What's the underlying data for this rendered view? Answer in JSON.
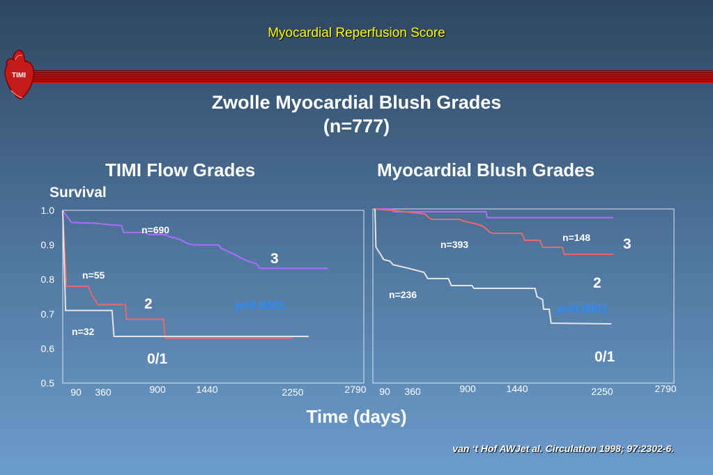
{
  "slide": {
    "header": "Myocardial Reperfusion Score",
    "title_line1": "Zwolle Myocardial Blush Grades",
    "title_line2": "(n=777)",
    "y_axis_label": "Survival",
    "x_axis_label": "Time (days)",
    "citation": "van ‘t Hof AWJet al. Circulation 1998; 97:2302-6.",
    "logo_text": "TIMI",
    "colors": {
      "background_top": "#2e4660",
      "background_bottom": "#6c9ccb",
      "header": "#ffff00",
      "rule": "#c01010",
      "pvalue": "#2a8cff"
    }
  },
  "chart_data": [
    {
      "type": "line",
      "title": "TIMI Flow Grades",
      "ylabel": "Survival",
      "xlabel": "Time (days)",
      "ylim": [
        0.5,
        1.0
      ],
      "xlim": [
        0,
        2790
      ],
      "y_ticks": [
        "1.0",
        "0.9",
        "0.8",
        "0.7",
        "0.6",
        "0.5"
      ],
      "x_ticks": [
        {
          "value": 90,
          "label": "90"
        },
        {
          "value": 360,
          "label": "360"
        },
        {
          "value": 900,
          "label": "900"
        },
        {
          "value": 1440,
          "label": "1440"
        },
        {
          "value": 2250,
          "label": "2250"
        },
        {
          "value": 2790,
          "label": "2790"
        }
      ],
      "pvalue": "p<0.0001",
      "series": [
        {
          "name": "3",
          "n_label": "n=690",
          "color": "#b06cff",
          "points": [
            [
              0,
              1.0
            ],
            [
              90,
              0.965
            ],
            [
              330,
              0.963
            ],
            [
              500,
              0.958
            ],
            [
              620,
              0.956
            ],
            [
              640,
              0.936
            ],
            [
              880,
              0.936
            ],
            [
              900,
              0.93
            ],
            [
              1090,
              0.93
            ],
            [
              1110,
              0.925
            ],
            [
              1180,
              0.92
            ],
            [
              1240,
              0.915
            ],
            [
              1320,
              0.903
            ],
            [
              1390,
              0.9
            ],
            [
              1640,
              0.9
            ],
            [
              1670,
              0.89
            ],
            [
              1790,
              0.875
            ],
            [
              1870,
              0.864
            ],
            [
              1930,
              0.855
            ],
            [
              2040,
              0.845
            ],
            [
              2080,
              0.832
            ],
            [
              2790,
              0.832
            ]
          ]
        },
        {
          "name": "2",
          "n_label": "n=55",
          "color": "#e86a6a",
          "points": [
            [
              0,
              1.0
            ],
            [
              40,
              0.78
            ],
            [
              270,
              0.78
            ],
            [
              310,
              0.753
            ],
            [
              370,
              0.727
            ],
            [
              660,
              0.727
            ],
            [
              670,
              0.685
            ],
            [
              1060,
              0.685
            ],
            [
              1080,
              0.63
            ],
            [
              2420,
              0.63
            ]
          ]
        },
        {
          "name": "0/1",
          "n_label": "n=32",
          "color": "#e4e4e4",
          "points": [
            [
              0,
              1.0
            ],
            [
              30,
              0.71
            ],
            [
              520,
              0.71
            ],
            [
              540,
              0.635
            ],
            [
              2590,
              0.635
            ]
          ]
        }
      ]
    },
    {
      "type": "line",
      "title": "Myocardial Blush Grades",
      "ylim": [
        0.5,
        1.0
      ],
      "xlim": [
        0,
        2790
      ],
      "x_ticks": [
        {
          "value": 90,
          "label": "90"
        },
        {
          "value": 360,
          "label": "360"
        },
        {
          "value": 900,
          "label": "900"
        },
        {
          "value": 1440,
          "label": "1440"
        },
        {
          "value": 2250,
          "label": "2250"
        },
        {
          "value": 2790,
          "label": "2790"
        }
      ],
      "pvalue": "p<0.0001",
      "series": [
        {
          "name": "3",
          "n_label": "n=148",
          "color": "#b06cff",
          "points": [
            [
              0,
              1.0
            ],
            [
              180,
              1.0
            ],
            [
              200,
              0.992
            ],
            [
              1180,
              0.992
            ],
            [
              1190,
              0.975
            ],
            [
              2530,
              0.975
            ]
          ]
        },
        {
          "name": "2",
          "n_label": "n=393",
          "color": "#e86a6a",
          "points": [
            [
              0,
              1.0
            ],
            [
              220,
              0.995
            ],
            [
              380,
              0.99
            ],
            [
              530,
              0.986
            ],
            [
              560,
              0.978
            ],
            [
              600,
              0.97
            ],
            [
              900,
              0.97
            ],
            [
              940,
              0.965
            ],
            [
              1030,
              0.96
            ],
            [
              1100,
              0.955
            ],
            [
              1150,
              0.95
            ],
            [
              1220,
              0.933
            ],
            [
              1250,
              0.93
            ],
            [
              1560,
              0.93
            ],
            [
              1590,
              0.91
            ],
            [
              1750,
              0.91
            ],
            [
              1780,
              0.89
            ],
            [
              1990,
              0.89
            ],
            [
              2010,
              0.87
            ],
            [
              2530,
              0.87
            ]
          ]
        },
        {
          "name": "0/1",
          "n_label": "n=236",
          "color": "#e4e4e4",
          "points": [
            [
              0,
              1.0
            ],
            [
              10,
              0.89
            ],
            [
              70,
              0.865
            ],
            [
              90,
              0.855
            ],
            [
              160,
              0.85
            ],
            [
              190,
              0.84
            ],
            [
              350,
              0.83
            ],
            [
              520,
              0.818
            ],
            [
              560,
              0.8
            ],
            [
              780,
              0.8
            ],
            [
              810,
              0.78
            ],
            [
              1030,
              0.78
            ],
            [
              1050,
              0.772
            ],
            [
              1700,
              0.772
            ],
            [
              1720,
              0.748
            ],
            [
              1780,
              0.74
            ],
            [
              1790,
              0.712
            ],
            [
              1850,
              0.712
            ],
            [
              1870,
              0.672
            ],
            [
              2510,
              0.67
            ]
          ]
        }
      ]
    }
  ]
}
